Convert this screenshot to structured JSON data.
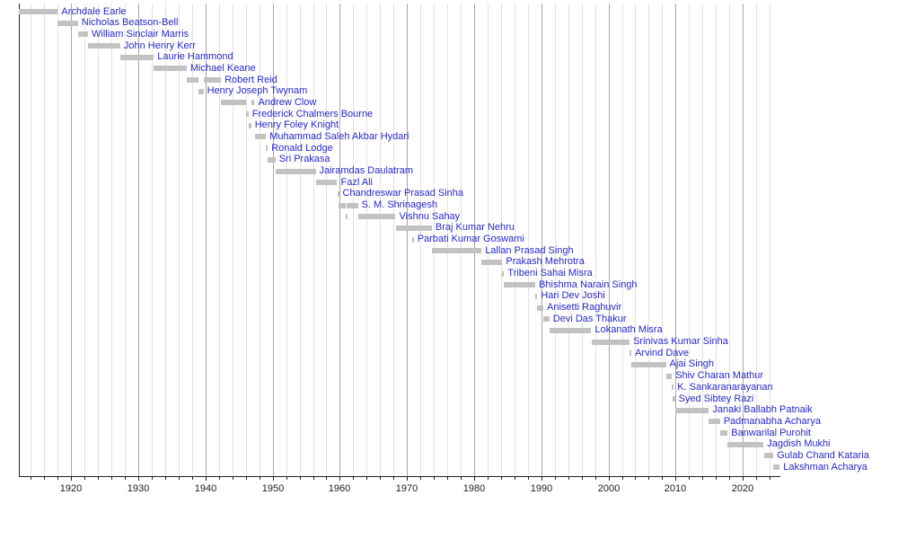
{
  "chart_data": {
    "type": "bar",
    "subtype": "horizontal-timeline-gantt",
    "description": "Timeline of Governors of Assam; one row per person, gray bars mark terms in office, blue link-style labels after each bar",
    "axis": {
      "range": [
        1912.2,
        2025.6
      ],
      "ticks": [
        1920,
        1930,
        1940,
        1950,
        1960,
        1970,
        1980,
        1990,
        2000,
        2010,
        2020
      ],
      "minor_step": 2,
      "minor_start": 1914,
      "minor_end": 2024,
      "grid": true,
      "orientation": "x-axis-bottom"
    },
    "colors": {
      "bar": "#c2c2c2",
      "name_link": "#2727cc",
      "grid_minor": "#e2e2e2",
      "grid_major": "#a6a6a6",
      "axis": "#202122",
      "background": "#ffffff"
    },
    "people": [
      {
        "name": "Archdale Earle",
        "terms": [
          [
            1912.2,
            1918.0
          ]
        ]
      },
      {
        "name": "Nicholas Beatson-Bell",
        "terms": [
          [
            1918.0,
            1921.0
          ]
        ]
      },
      {
        "name": "William Sinclair Marris",
        "terms": [
          [
            1921.0,
            1922.5
          ]
        ]
      },
      {
        "name": "John Henry Kerr",
        "terms": [
          [
            1922.5,
            1927.3
          ]
        ]
      },
      {
        "name": "Laurie Hammond",
        "terms": [
          [
            1927.3,
            1932.3
          ]
        ]
      },
      {
        "name": "Michael Keane",
        "terms": [
          [
            1932.3,
            1937.2
          ]
        ]
      },
      {
        "name": "Robert Reid",
        "terms": [
          [
            1937.2,
            1938.9
          ],
          [
            1939.7,
            1942.3
          ]
        ]
      },
      {
        "name": "Henry Joseph Twynam",
        "terms": [
          [
            1938.9,
            1939.7
          ]
        ]
      },
      {
        "name": "Andrew Clow",
        "terms": [
          [
            1942.3,
            1946.0
          ],
          [
            1946.8,
            1947.3
          ]
        ]
      },
      {
        "name": "Frederick Chalmers Bourne",
        "terms": [
          [
            1946.0,
            1946.4
          ]
        ]
      },
      {
        "name": "Henry Foley Knight",
        "terms": [
          [
            1946.4,
            1946.8
          ]
        ]
      },
      {
        "name": "Muhammad Saleh Akbar Hydari",
        "terms": [
          [
            1947.3,
            1949.0
          ]
        ]
      },
      {
        "name": "Ronald Lodge",
        "terms": [
          [
            1949.0,
            1949.2
          ]
        ]
      },
      {
        "name": "Sri Prakasa",
        "terms": [
          [
            1949.2,
            1950.4
          ]
        ]
      },
      {
        "name": "Jairamdas Daulatram",
        "terms": [
          [
            1950.4,
            1956.4
          ]
        ]
      },
      {
        "name": "Fazl Ali",
        "terms": [
          [
            1956.4,
            1959.6
          ]
        ]
      },
      {
        "name": "Chandreswar Prasad Sinha",
        "terms": [
          [
            1959.6,
            1959.8
          ]
        ]
      },
      {
        "name": "S. M. Shrinagesh",
        "terms": [
          [
            1959.8,
            1960.85
          ],
          [
            1961.05,
            1962.7
          ]
        ]
      },
      {
        "name": "Vishnu Sahay",
        "terms": [
          [
            1960.85,
            1961.05
          ],
          [
            1962.7,
            1968.3
          ]
        ]
      },
      {
        "name": "Braj Kumar Nehru",
        "terms": [
          [
            1968.3,
            1973.7
          ]
        ]
      },
      {
        "name": "Parbati Kumar Goswami",
        "terms": [
          [
            1970.7,
            1971.0
          ]
        ]
      },
      {
        "name": "Lallan Prasad Singh",
        "terms": [
          [
            1973.7,
            1981.1
          ]
        ]
      },
      {
        "name": "Prakash Mehrotra",
        "terms": [
          [
            1981.1,
            1984.2
          ]
        ]
      },
      {
        "name": "Tribeni Sahai Misra",
        "terms": [
          [
            1984.2,
            1984.45
          ]
        ]
      },
      {
        "name": "Bhishma Narain Singh",
        "terms": [
          [
            1984.45,
            1989.1
          ]
        ]
      },
      {
        "name": "Hari Dev Joshi",
        "terms": [
          [
            1989.1,
            1989.4
          ]
        ]
      },
      {
        "name": "Anisetti Raghuvir",
        "terms": [
          [
            1989.4,
            1990.3
          ]
        ]
      },
      {
        "name": "Devi Das Thakur",
        "terms": [
          [
            1990.3,
            1991.2
          ]
        ]
      },
      {
        "name": "Lokanath Misra",
        "terms": [
          [
            1991.2,
            1997.45
          ]
        ]
      },
      {
        "name": "Srinivas Kumar Sinha",
        "terms": [
          [
            1997.45,
            2003.15
          ]
        ]
      },
      {
        "name": "Arvind Dave",
        "terms": [
          [
            2003.15,
            2003.4
          ]
        ]
      },
      {
        "name": "Ajai Singh",
        "terms": [
          [
            2003.4,
            2008.55
          ]
        ]
      },
      {
        "name": "Shiv Charan Mathur",
        "terms": [
          [
            2008.55,
            2009.45
          ]
        ]
      },
      {
        "name": "K. Sankaranarayanan",
        "terms": [
          [
            2009.45,
            2009.55
          ]
        ]
      },
      {
        "name": "Syed Sibtey Razi",
        "terms": [
          [
            2009.55,
            2009.9
          ]
        ]
      },
      {
        "name": "Janaki Ballabh Patnaik",
        "terms": [
          [
            2009.9,
            2014.95
          ]
        ]
      },
      {
        "name": "Padmanabha Acharya",
        "terms": [
          [
            2014.95,
            2016.6
          ]
        ]
      },
      {
        "name": "Banwarilal Purohit",
        "terms": [
          [
            2016.6,
            2017.75
          ]
        ]
      },
      {
        "name": "Jagdish Mukhi",
        "terms": [
          [
            2017.75,
            2023.1
          ]
        ]
      },
      {
        "name": "Gulab Chand Kataria",
        "terms": [
          [
            2023.15,
            2024.55
          ]
        ]
      },
      {
        "name": "Lakshman Acharya",
        "terms": [
          [
            2024.55,
            2025.5
          ]
        ]
      }
    ]
  }
}
